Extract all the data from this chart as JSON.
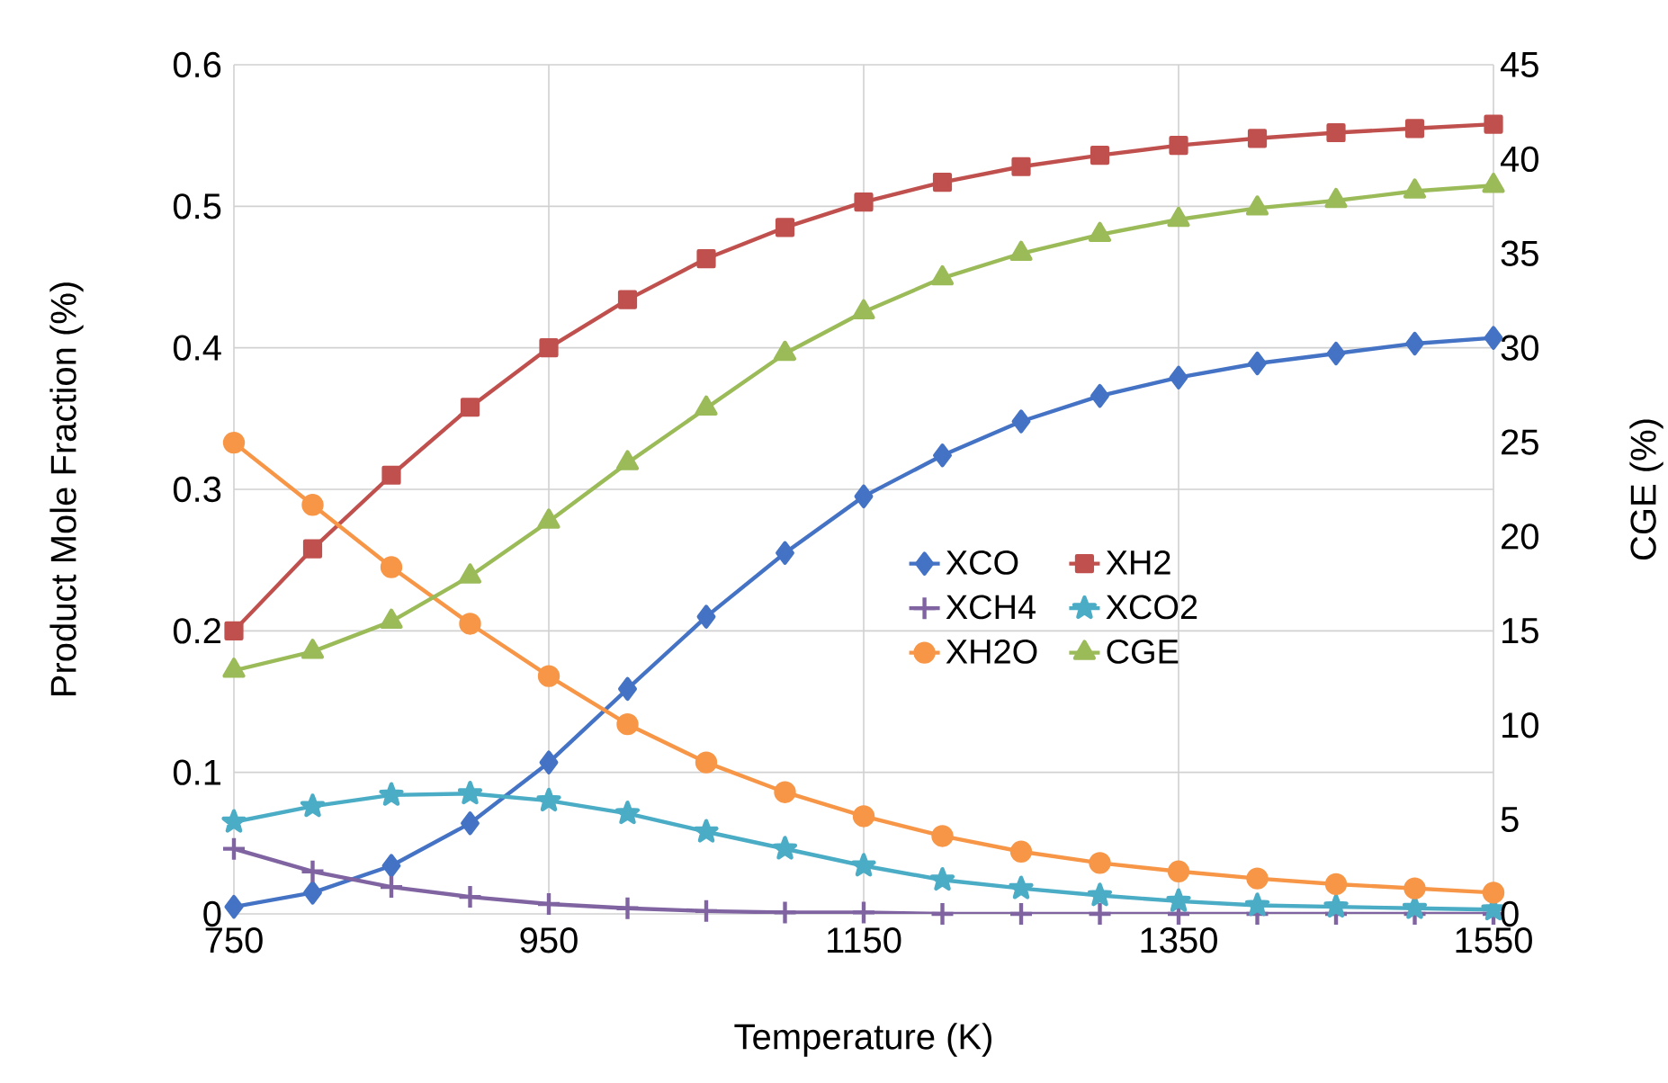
{
  "chart_data": {
    "type": "line",
    "xlabel": "Temperature (K)",
    "ylabel": "Product Mole Fraction (%)",
    "y2label": "CGE (%)",
    "x": [
      750,
      800,
      850,
      900,
      950,
      1000,
      1050,
      1100,
      1150,
      1200,
      1250,
      1300,
      1350,
      1400,
      1450,
      1500,
      1550
    ],
    "xlim": [
      750,
      1550
    ],
    "xticks": [
      750,
      950,
      1150,
      1350,
      1550
    ],
    "ylim": [
      0,
      0.6
    ],
    "yticks": [
      0,
      0.1,
      0.2,
      0.3,
      0.4,
      0.5,
      0.6
    ],
    "y2lim": [
      0,
      45
    ],
    "y2ticks": [
      0,
      5,
      10,
      15,
      20,
      25,
      30,
      35,
      40,
      45
    ],
    "grid": true,
    "legend": "center right",
    "line_style": "solid",
    "series": [
      {
        "name": "XCO",
        "color": "#4472c4",
        "marker": "diamond",
        "values": [
          0.005,
          0.015,
          0.034,
          0.064,
          0.107,
          0.159,
          0.21,
          0.255,
          0.295,
          0.324,
          0.348,
          0.366,
          0.379,
          0.389,
          0.396,
          0.403,
          0.407
        ]
      },
      {
        "name": "XH2",
        "color": "#c0504d",
        "marker": "square",
        "values": [
          0.2,
          0.258,
          0.31,
          0.358,
          0.4,
          0.434,
          0.463,
          0.485,
          0.503,
          0.517,
          0.528,
          0.536,
          0.543,
          0.548,
          0.552,
          0.555,
          0.558
        ]
      },
      {
        "name": "XCH4",
        "color": "#8064a2",
        "marker": "cross",
        "values": [
          0.046,
          0.03,
          0.019,
          0.012,
          0.007,
          0.004,
          0.002,
          0.001,
          0.001,
          0.0,
          0.0,
          0.0,
          0.0,
          0.0,
          0.0,
          0.0,
          0.0
        ]
      },
      {
        "name": "XCO2",
        "color": "#4bacc6",
        "marker": "star",
        "values": [
          0.065,
          0.076,
          0.084,
          0.085,
          0.08,
          0.071,
          0.058,
          0.046,
          0.034,
          0.024,
          0.018,
          0.013,
          0.009,
          0.006,
          0.005,
          0.004,
          0.003
        ]
      },
      {
        "name": "XH2O",
        "color": "#f79646",
        "marker": "circle",
        "values": [
          0.333,
          0.289,
          0.245,
          0.205,
          0.168,
          0.134,
          0.107,
          0.086,
          0.069,
          0.055,
          0.044,
          0.036,
          0.03,
          0.025,
          0.021,
          0.018,
          0.015
        ]
      },
      {
        "name": "CGE",
        "color": "#9bbb59",
        "marker": "triangle",
        "axis": "y2",
        "values": [
          12.9,
          13.9,
          15.5,
          17.9,
          20.8,
          23.9,
          26.8,
          29.7,
          31.9,
          33.7,
          35.0,
          36.0,
          36.8,
          37.4,
          37.8,
          38.3,
          38.6
        ]
      }
    ]
  }
}
